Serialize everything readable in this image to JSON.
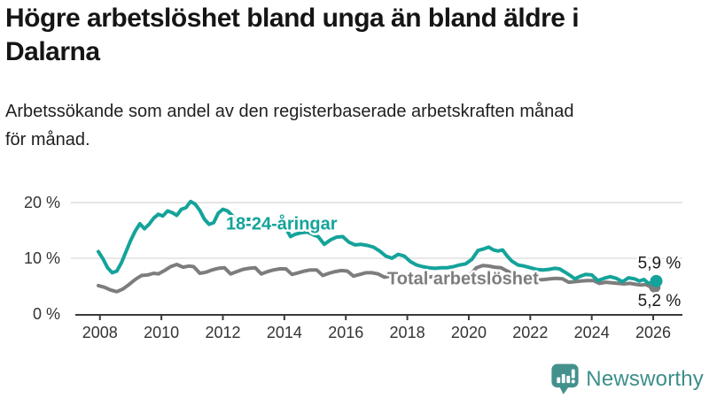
{
  "header": {
    "title_line1": "Högre arbetslöshet bland unga än bland äldre i",
    "title_line2": "Dalarna",
    "subtitle_line1": "Arbetssökande som andel av den registerbaserade arbetskraften månad",
    "subtitle_line2": "för månad."
  },
  "footer": {
    "brand": "Newsworthy"
  },
  "colors": {
    "youth": "#14a39a",
    "total": "#7d7d7d",
    "axis": "#3a3a3a",
    "grid": "#d9d9d9",
    "text": "#1a1a1a",
    "brand": "#3d8e8a",
    "brand_icon": "#43918d"
  },
  "chart_data": {
    "type": "line",
    "title": "Högre arbetslöshet bland unga än bland äldre i Dalarna",
    "subtitle": "Arbetssökande som andel av den registerbaserade arbetskraften månad för månad.",
    "xlabel": "",
    "ylabel": "%",
    "grid": "horizontal",
    "legend_position": "inline-labels",
    "xlim": [
      2007.2,
      2026.95
    ],
    "ylim": [
      0,
      21.5
    ],
    "x_ticks": [
      2008,
      2010,
      2012,
      2014,
      2016,
      2018,
      2020,
      2022,
      2024,
      2026
    ],
    "y_ticks": [
      {
        "value": 0,
        "label": "0 %"
      },
      {
        "value": 10,
        "label": "10 %"
      },
      {
        "value": 20,
        "label": "20 %"
      }
    ],
    "series": [
      {
        "name": "Total arbetslöshet",
        "color": "#7d7d7d",
        "points": [
          [
            2007.95,
            5.1
          ],
          [
            2008.15,
            4.8
          ],
          [
            2008.35,
            4.3
          ],
          [
            2008.55,
            4.0
          ],
          [
            2008.75,
            4.5
          ],
          [
            2008.95,
            5.3
          ],
          [
            2009.15,
            6.2
          ],
          [
            2009.35,
            6.9
          ],
          [
            2009.55,
            7.0
          ],
          [
            2009.75,
            7.3
          ],
          [
            2009.9,
            7.2
          ],
          [
            2010.1,
            7.8
          ],
          [
            2010.3,
            8.5
          ],
          [
            2010.5,
            8.9
          ],
          [
            2010.7,
            8.4
          ],
          [
            2010.9,
            8.6
          ],
          [
            2011.05,
            8.5
          ],
          [
            2011.25,
            7.3
          ],
          [
            2011.45,
            7.5
          ],
          [
            2011.65,
            7.9
          ],
          [
            2011.85,
            8.2
          ],
          [
            2012.05,
            8.3
          ],
          [
            2012.25,
            7.2
          ],
          [
            2012.45,
            7.6
          ],
          [
            2012.65,
            8.0
          ],
          [
            2012.85,
            8.2
          ],
          [
            2013.05,
            8.3
          ],
          [
            2013.25,
            7.2
          ],
          [
            2013.45,
            7.6
          ],
          [
            2013.65,
            7.9
          ],
          [
            2013.85,
            8.1
          ],
          [
            2014.05,
            8.1
          ],
          [
            2014.25,
            7.1
          ],
          [
            2014.45,
            7.4
          ],
          [
            2014.65,
            7.7
          ],
          [
            2014.85,
            7.9
          ],
          [
            2015.05,
            7.9
          ],
          [
            2015.25,
            6.9
          ],
          [
            2015.45,
            7.3
          ],
          [
            2015.65,
            7.6
          ],
          [
            2015.85,
            7.8
          ],
          [
            2016.05,
            7.7
          ],
          [
            2016.25,
            6.8
          ],
          [
            2016.45,
            7.1
          ],
          [
            2016.65,
            7.4
          ],
          [
            2016.85,
            7.4
          ],
          [
            2017.05,
            7.2
          ],
          [
            2017.25,
            6.6
          ],
          [
            2017.45,
            6.8
          ],
          [
            2017.65,
            7.0
          ],
          [
            2017.85,
            7.1
          ],
          [
            2018.05,
            6.9
          ],
          [
            2018.25,
            6.3
          ],
          [
            2018.45,
            6.4
          ],
          [
            2018.65,
            6.6
          ],
          [
            2018.85,
            6.7
          ],
          [
            2019.05,
            6.6
          ],
          [
            2019.25,
            6.2
          ],
          [
            2019.45,
            6.3
          ],
          [
            2019.65,
            6.5
          ],
          [
            2019.85,
            6.7
          ],
          [
            2020.05,
            7.1
          ],
          [
            2020.25,
            8.3
          ],
          [
            2020.45,
            8.7
          ],
          [
            2020.65,
            8.6
          ],
          [
            2020.85,
            8.4
          ],
          [
            2021.05,
            8.3
          ],
          [
            2021.25,
            7.7
          ],
          [
            2021.45,
            7.2
          ],
          [
            2021.65,
            6.9
          ],
          [
            2021.85,
            6.7
          ],
          [
            2022.05,
            6.5
          ],
          [
            2022.25,
            6.1
          ],
          [
            2022.45,
            6.2
          ],
          [
            2022.65,
            6.3
          ],
          [
            2022.85,
            6.4
          ],
          [
            2023.05,
            6.3
          ],
          [
            2023.25,
            5.7
          ],
          [
            2023.45,
            5.8
          ],
          [
            2023.65,
            5.9
          ],
          [
            2023.85,
            6.0
          ],
          [
            2024.05,
            6.0
          ],
          [
            2024.25,
            5.5
          ],
          [
            2024.45,
            5.7
          ],
          [
            2024.65,
            5.6
          ],
          [
            2024.85,
            5.5
          ],
          [
            2025.05,
            5.4
          ],
          [
            2025.25,
            5.5
          ],
          [
            2025.45,
            5.3
          ],
          [
            2025.6,
            5.2
          ],
          [
            2025.75,
            5.3
          ],
          [
            2025.9,
            4.9
          ],
          [
            2026.0,
            5.0
          ],
          [
            2026.1,
            5.2
          ]
        ]
      },
      {
        "name": "18-24-åringar",
        "color": "#14a39a",
        "points": [
          [
            2007.95,
            11.2
          ],
          [
            2008.1,
            9.9
          ],
          [
            2008.25,
            8.3
          ],
          [
            2008.4,
            7.4
          ],
          [
            2008.55,
            7.7
          ],
          [
            2008.7,
            9.2
          ],
          [
            2008.85,
            11.2
          ],
          [
            2009.0,
            13.2
          ],
          [
            2009.15,
            14.9
          ],
          [
            2009.3,
            16.2
          ],
          [
            2009.45,
            15.3
          ],
          [
            2009.6,
            16.1
          ],
          [
            2009.75,
            17.2
          ],
          [
            2009.9,
            17.9
          ],
          [
            2010.05,
            17.6
          ],
          [
            2010.2,
            18.5
          ],
          [
            2010.35,
            18.2
          ],
          [
            2010.5,
            17.7
          ],
          [
            2010.65,
            18.8
          ],
          [
            2010.8,
            19.1
          ],
          [
            2010.95,
            20.2
          ],
          [
            2011.1,
            19.7
          ],
          [
            2011.25,
            18.6
          ],
          [
            2011.4,
            17.0
          ],
          [
            2011.55,
            16.1
          ],
          [
            2011.7,
            16.4
          ],
          [
            2011.85,
            18.1
          ],
          [
            2012.0,
            18.8
          ],
          [
            2012.15,
            18.5
          ],
          [
            2012.3,
            17.7
          ],
          [
            2012.5,
            15.9
          ],
          [
            2012.65,
            16.6
          ],
          [
            2012.8,
            17.0
          ],
          [
            2013.0,
            16.9
          ],
          [
            2013.2,
            16.4
          ],
          [
            2013.4,
            15.7
          ],
          [
            2013.6,
            16.1
          ],
          [
            2013.8,
            16.4
          ],
          [
            2014.0,
            15.9
          ],
          [
            2014.2,
            13.9
          ],
          [
            2014.35,
            14.3
          ],
          [
            2014.55,
            14.6
          ],
          [
            2014.75,
            14.7
          ],
          [
            2014.95,
            14.2
          ],
          [
            2015.1,
            13.9
          ],
          [
            2015.3,
            12.5
          ],
          [
            2015.5,
            13.3
          ],
          [
            2015.7,
            13.8
          ],
          [
            2015.9,
            13.9
          ],
          [
            2016.1,
            12.9
          ],
          [
            2016.3,
            12.4
          ],
          [
            2016.5,
            12.5
          ],
          [
            2016.7,
            12.3
          ],
          [
            2016.9,
            12.0
          ],
          [
            2017.1,
            11.3
          ],
          [
            2017.3,
            10.4
          ],
          [
            2017.5,
            10.0
          ],
          [
            2017.7,
            10.7
          ],
          [
            2017.9,
            10.4
          ],
          [
            2018.1,
            9.4
          ],
          [
            2018.3,
            8.8
          ],
          [
            2018.5,
            8.5
          ],
          [
            2018.7,
            8.3
          ],
          [
            2018.9,
            8.2
          ],
          [
            2019.1,
            8.3
          ],
          [
            2019.3,
            8.3
          ],
          [
            2019.5,
            8.5
          ],
          [
            2019.7,
            8.8
          ],
          [
            2019.9,
            9.0
          ],
          [
            2020.1,
            9.8
          ],
          [
            2020.3,
            11.4
          ],
          [
            2020.5,
            11.7
          ],
          [
            2020.65,
            12.0
          ],
          [
            2020.8,
            11.5
          ],
          [
            2020.95,
            11.3
          ],
          [
            2021.1,
            11.5
          ],
          [
            2021.25,
            10.4
          ],
          [
            2021.4,
            9.5
          ],
          [
            2021.6,
            8.8
          ],
          [
            2021.8,
            8.6
          ],
          [
            2022.0,
            8.3
          ],
          [
            2022.2,
            8.0
          ],
          [
            2022.4,
            7.9
          ],
          [
            2022.6,
            8.0
          ],
          [
            2022.8,
            8.2
          ],
          [
            2022.95,
            8.1
          ],
          [
            2023.1,
            7.6
          ],
          [
            2023.3,
            6.9
          ],
          [
            2023.45,
            6.3
          ],
          [
            2023.6,
            6.7
          ],
          [
            2023.8,
            7.1
          ],
          [
            2024.0,
            7.0
          ],
          [
            2024.2,
            6.0
          ],
          [
            2024.4,
            6.4
          ],
          [
            2024.6,
            6.7
          ],
          [
            2024.8,
            6.4
          ],
          [
            2025.0,
            5.8
          ],
          [
            2025.2,
            6.5
          ],
          [
            2025.4,
            6.3
          ],
          [
            2025.55,
            5.9
          ],
          [
            2025.7,
            6.2
          ],
          [
            2025.85,
            5.5
          ],
          [
            2026.0,
            5.7
          ],
          [
            2026.1,
            5.9
          ]
        ]
      }
    ],
    "series_labels": [
      {
        "text": "18-24-åringar",
        "x": 2012.1,
        "y": 15.2,
        "color": "#14a39a"
      },
      {
        "text": "Total arbetslöshet",
        "x": 2017.35,
        "y": 5.3,
        "color": "#7d7d7d"
      }
    ],
    "end_labels": [
      {
        "text": "5,9 %",
        "x": 2026.9,
        "y": 8.2
      },
      {
        "text": "5,2 %",
        "x": 2026.9,
        "y": 1.4
      }
    ],
    "end_dots": [
      {
        "x": 2026.05,
        "y": 4.85,
        "r": 6.5,
        "color": "#7d7d7d"
      },
      {
        "x": 2026.1,
        "y": 5.9,
        "r": 7,
        "color": "#14a39a"
      }
    ]
  }
}
